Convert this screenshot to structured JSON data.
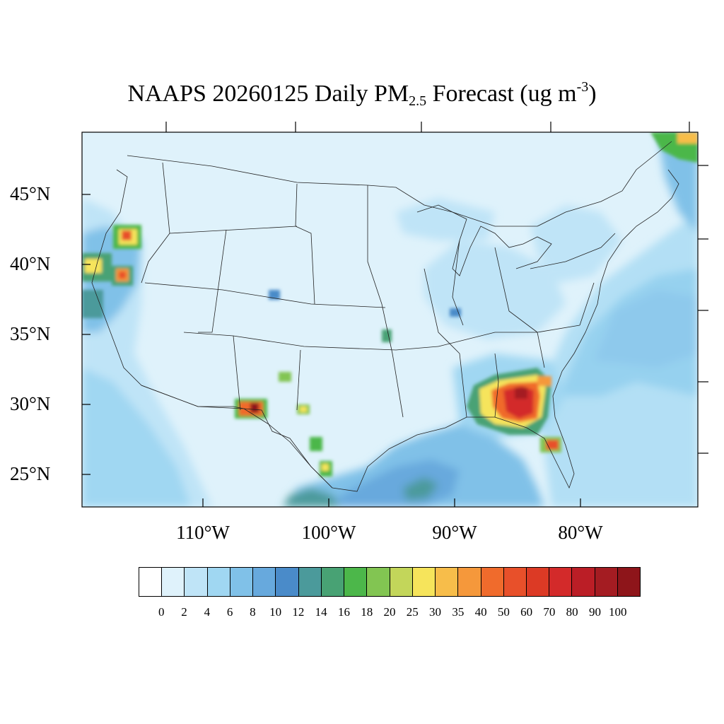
{
  "title": {
    "prefix": "NAAPS 20260125 Daily PM",
    "subscript": "2.5",
    "middle": " Forecast (ug m",
    "superscript": "-3",
    "suffix": ")"
  },
  "map": {
    "lat_labels": [
      "45°N",
      "40°N",
      "35°N",
      "30°N",
      "25°N"
    ],
    "lon_labels": [
      "110°W",
      "100°W",
      "90°W",
      "80°W"
    ],
    "ocean_color": "#dff2fb",
    "land_color": "#e2f3fc",
    "hotspots": [
      {
        "name": "georgia-smoke",
        "lat": 29.9,
        "lon": -84.0,
        "level": 100
      },
      {
        "name": "oregon-smoke",
        "lat": 42.0,
        "lon": -115.7,
        "level": 50
      },
      {
        "name": "california-smoke",
        "lat": 39.6,
        "lon": -116.1,
        "level": 40
      },
      {
        "name": "new-mexico-smoke",
        "lat": 29.7,
        "lon": -105.6,
        "level": 100
      },
      {
        "name": "quebec-smoke",
        "lat": 48.8,
        "lon": -71.5,
        "level": 35
      },
      {
        "name": "florida-smoke",
        "lat": 27.0,
        "lon": -81.8,
        "level": 40
      }
    ]
  },
  "colorbar": {
    "labels": [
      "0",
      "2",
      "4",
      "6",
      "8",
      "10",
      "12",
      "14",
      "16",
      "18",
      "20",
      "25",
      "30",
      "35",
      "40",
      "50",
      "60",
      "70",
      "80",
      "90",
      "100"
    ],
    "colors": [
      "#ffffff",
      "#dff2fb",
      "#bfe4f7",
      "#a0d7f2",
      "#80c1e8",
      "#67a9dd",
      "#4a8bc9",
      "#4b9a9b",
      "#48a274",
      "#4cb74a",
      "#82c552",
      "#c3d65a",
      "#f6e45b",
      "#f7bd4a",
      "#f5983b",
      "#f06b2c",
      "#e8502a",
      "#dc3a25",
      "#d32a2a",
      "#bb1e26",
      "#a41c22",
      "#8e151a"
    ]
  }
}
